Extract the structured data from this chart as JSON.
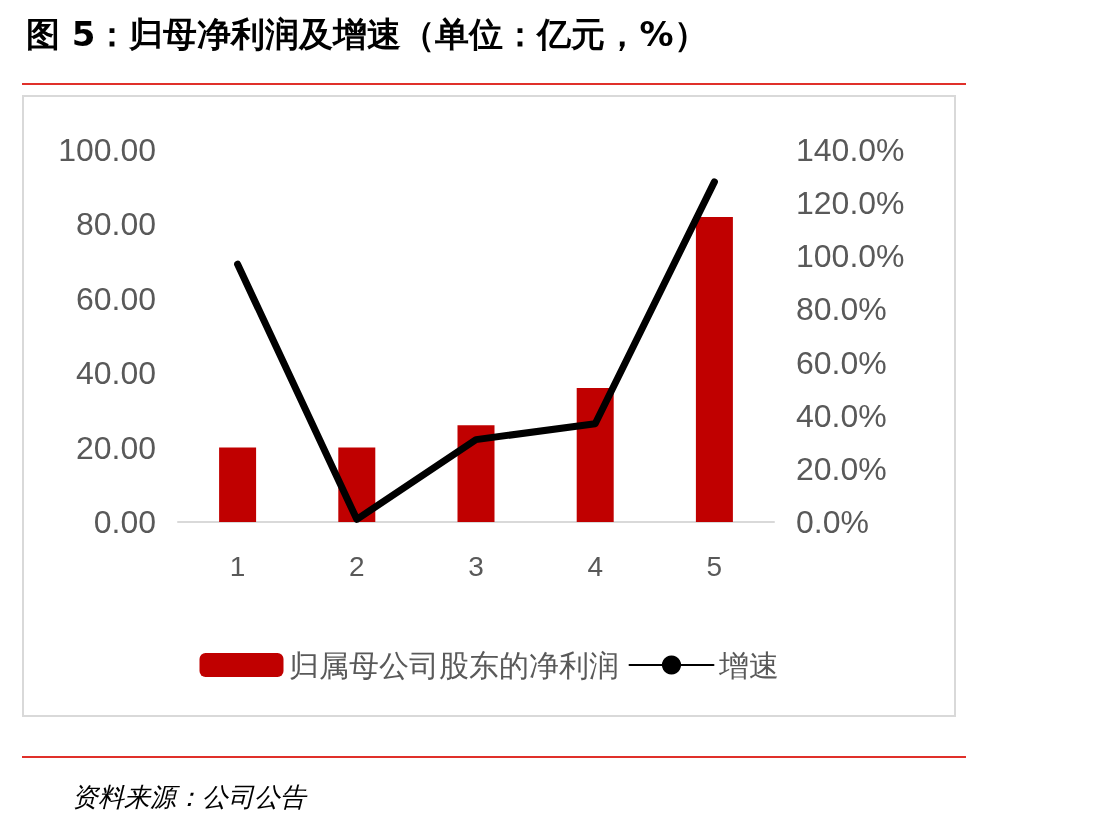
{
  "chart_data": {
    "type": "bar",
    "title": "图 5：归母净利润及增速（单位：亿元，%）",
    "categories": [
      "1",
      "2",
      "3",
      "4",
      "5"
    ],
    "series": [
      {
        "name": "归属母公司股东的净利润",
        "color": "#c00000",
        "values": [
          20,
          20,
          26,
          36,
          82
        ]
      },
      {
        "name": "增速",
        "type": "line",
        "axis": "y2",
        "color": "#000000",
        "values": [
          97,
          1,
          31,
          37,
          128
        ]
      }
    ],
    "ylim": [
      0,
      100
    ],
    "yticks": [
      {
        "value": 0,
        "label": "0.00"
      },
      {
        "value": 20,
        "label": "20.00"
      },
      {
        "value": 40,
        "label": "40.00"
      },
      {
        "value": 60,
        "label": "60.00"
      },
      {
        "value": 80,
        "label": "80.00"
      },
      {
        "value": 100,
        "label": "100.00"
      }
    ],
    "y2lim": [
      0,
      140
    ],
    "y2ticks": [
      {
        "value": 0,
        "label": "0.0%"
      },
      {
        "value": 20,
        "label": "20.0%"
      },
      {
        "value": 40,
        "label": "40.0%"
      },
      {
        "value": 60,
        "label": "60.0%"
      },
      {
        "value": 80,
        "label": "80.0%"
      },
      {
        "value": 100,
        "label": "100.0%"
      },
      {
        "value": 120,
        "label": "120.0%"
      },
      {
        "value": 140,
        "label": "140.0%"
      }
    ],
    "grid": false,
    "legend": "bottom",
    "marker": "none",
    "line_style": "solid",
    "annotations": [
      "资料来源：公司公告"
    ]
  }
}
